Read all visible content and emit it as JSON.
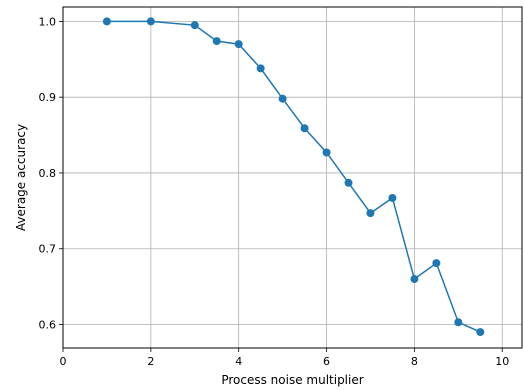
{
  "chart_data": {
    "type": "line",
    "title": "",
    "xlabel": "Process noise multiplier",
    "ylabel": "Average accuracy",
    "xlim": [
      0,
      10.45
    ],
    "ylim": [
      0.569,
      1.019
    ],
    "xticks": [
      0,
      2,
      4,
      6,
      8,
      10
    ],
    "xtick_labels": [
      "0",
      "2",
      "4",
      "6",
      "8",
      "10"
    ],
    "yticks": [
      0.6,
      0.7,
      0.8,
      0.9,
      1.0
    ],
    "ytick_labels": [
      "0.6",
      "0.7",
      "0.8",
      "0.9",
      "1.0"
    ],
    "grid": true,
    "series": [
      {
        "color": "#1f77b4",
        "marker": "circle",
        "x": [
          1.0,
          2.0,
          3.0,
          3.5,
          4.0,
          4.5,
          5.0,
          5.5,
          6.0,
          6.5,
          7.0,
          7.5,
          8.0,
          8.5,
          9.0,
          9.5
        ],
        "y": [
          1.0,
          1.0,
          0.995,
          0.974,
          0.97,
          0.938,
          0.898,
          0.859,
          0.827,
          0.787,
          0.747,
          0.767,
          0.66,
          0.681,
          0.603,
          0.59
        ]
      }
    ]
  }
}
